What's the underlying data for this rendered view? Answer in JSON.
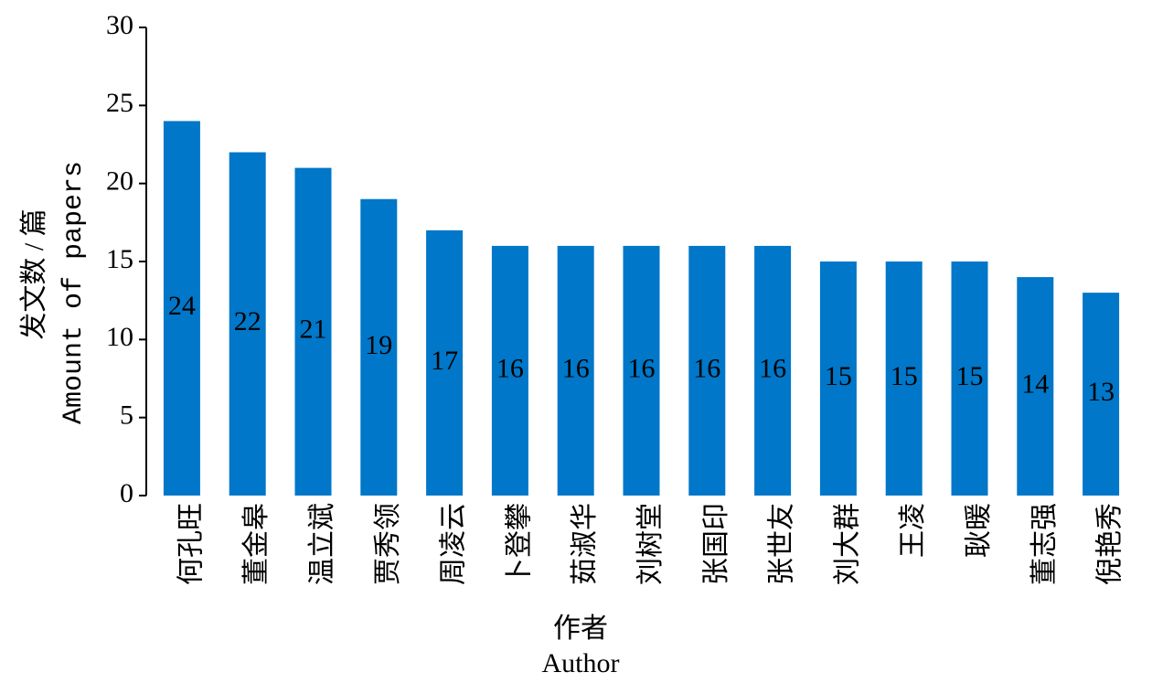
{
  "chart_data": {
    "type": "bar",
    "y_label": [
      "发文数 / 篇",
      "Amount of papers"
    ],
    "x_label": [
      "作者",
      "Author"
    ],
    "categories": [
      "何孔旺",
      "董金皋",
      "温立斌",
      "贾秀领",
      "周凌云",
      "卜登攀",
      "茹淑华",
      "刘树堂",
      "张国印",
      "张世友",
      "刘大群",
      "王凌",
      "耿暖",
      "董志强",
      "倪艳秀"
    ],
    "values": [
      24,
      22,
      21,
      19,
      17,
      16,
      16,
      16,
      16,
      16,
      15,
      15,
      15,
      14,
      13
    ],
    "color": "#0077c8",
    "ylim": [
      0,
      30
    ],
    "yticks": [
      0,
      5,
      10,
      15,
      20,
      25,
      30
    ],
    "grid": false
  }
}
